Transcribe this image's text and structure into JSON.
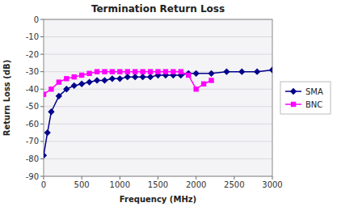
{
  "chart_data": {
    "type": "line",
    "title": "Termination Return Loss",
    "xlabel": "Frequency (MHz)",
    "ylabel": "Return Loss (dB)",
    "xlim": [
      0,
      3000
    ],
    "ylim": [
      -90,
      0
    ],
    "xticks": [
      0,
      500,
      1000,
      1500,
      2000,
      2500,
      3000
    ],
    "yticks": [
      0,
      -10,
      -20,
      -30,
      -40,
      -50,
      -60,
      -70,
      -80,
      -90
    ],
    "grid": "y",
    "legend": "right",
    "series": [
      {
        "name": "SMA",
        "color": "#00008b",
        "marker": "diamond",
        "x": [
          0,
          50,
          100,
          200,
          300,
          400,
          500,
          600,
          700,
          800,
          900,
          1000,
          1100,
          1200,
          1300,
          1400,
          1500,
          1600,
          1700,
          1800,
          1900,
          2000,
          2200,
          2400,
          2600,
          2800,
          3000
        ],
        "values": [
          -78,
          -65,
          -53,
          -44,
          -40,
          -38,
          -37,
          -36,
          -35,
          -35,
          -34,
          -34,
          -33,
          -33,
          -33,
          -33,
          -32,
          -32,
          -32,
          -32,
          -31,
          -31,
          -31,
          -30,
          -30,
          -30,
          -29
        ]
      },
      {
        "name": "BNC",
        "color": "#ff00ff",
        "marker": "square",
        "x": [
          0,
          100,
          200,
          300,
          400,
          500,
          600,
          700,
          800,
          900,
          1000,
          1100,
          1200,
          1300,
          1400,
          1500,
          1600,
          1700,
          1800,
          1900,
          2000,
          2100,
          2200
        ],
        "values": [
          -43,
          -40,
          -36,
          -34,
          -33,
          -32,
          -31,
          -30,
          -30,
          -30,
          -30,
          -30,
          -30,
          -30,
          -30,
          -30,
          -30,
          -30,
          -30,
          -32,
          -40,
          -37,
          -35
        ]
      }
    ]
  }
}
